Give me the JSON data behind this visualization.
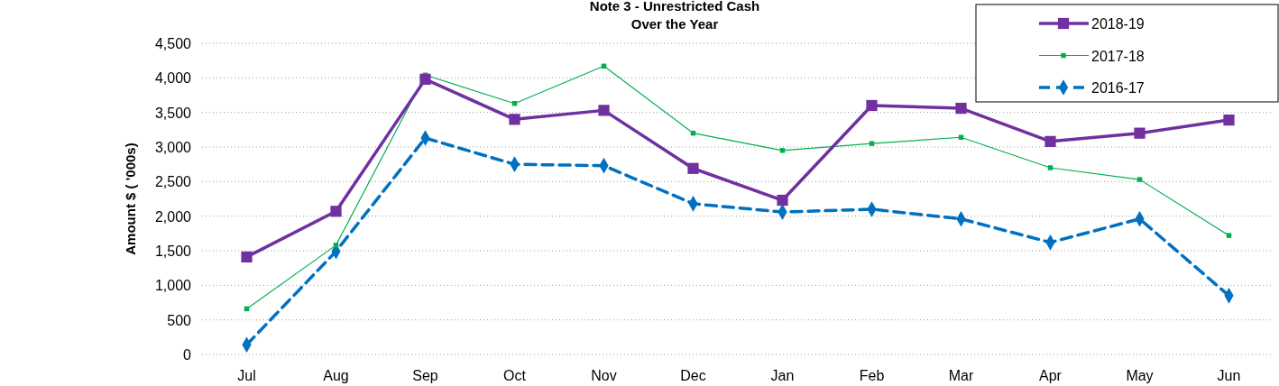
{
  "chart_data": {
    "type": "line",
    "title": "Note 3 - Unrestricted Cash\nOver the Year",
    "ylabel": "Amount $ ( '000s)",
    "categories": [
      "Jul",
      "Aug",
      "Sep",
      "Oct",
      "Nov",
      "Dec",
      "Jan",
      "Feb",
      "Mar",
      "Apr",
      "May",
      "Jun"
    ],
    "series": [
      {
        "name": "2018-19",
        "color": "#7030a0",
        "marker": "square",
        "line_style": "solid",
        "values": [
          1410,
          2070,
          3980,
          3400,
          3530,
          2690,
          2230,
          3600,
          3560,
          3080,
          3200,
          3390
        ]
      },
      {
        "name": "2017-18",
        "color": "#00b050",
        "marker": "square",
        "line_style": "solid",
        "values": [
          660,
          1580,
          4040,
          3630,
          4170,
          3200,
          2950,
          3050,
          3140,
          2700,
          2530,
          1720
        ]
      },
      {
        "name": "2016-17",
        "color": "#0070c0",
        "marker": "diamond",
        "line_style": "dashed",
        "values": [
          140,
          1490,
          3130,
          2750,
          2730,
          2180,
          2060,
          2100,
          1960,
          1620,
          1960,
          850
        ]
      }
    ],
    "ylim": [
      0,
      4500
    ],
    "yticks": [
      {
        "value": 0,
        "label": "0"
      },
      {
        "value": 500,
        "label": "500"
      },
      {
        "value": 1000,
        "label": "1,000"
      },
      {
        "value": 1500,
        "label": "1,500"
      },
      {
        "value": 2000,
        "label": "2,000"
      },
      {
        "value": 2500,
        "label": "2,500"
      },
      {
        "value": 3000,
        "label": "3,000"
      },
      {
        "value": 3500,
        "label": "3,500"
      },
      {
        "value": 4000,
        "label": "4,000"
      },
      {
        "value": 4500,
        "label": "4,500"
      }
    ],
    "grid": "y",
    "legend": "top right"
  }
}
